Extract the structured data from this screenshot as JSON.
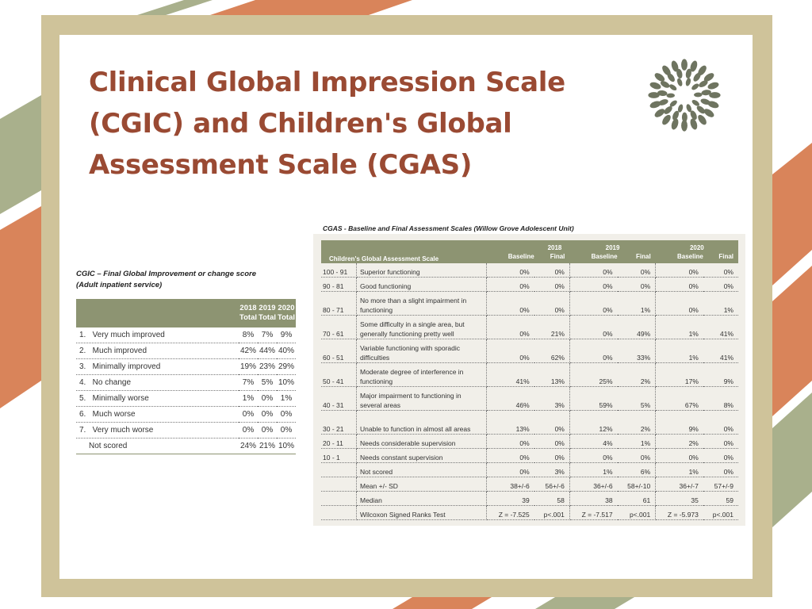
{
  "page": {
    "title": "Clinical Global Impression Scale (CGIC) and Children's Global Assessment Scale (CGAS)",
    "colors": {
      "title": "#9a4a33",
      "frame": "#cfc39a",
      "header": "#8d9472",
      "logo": "#6e7460",
      "stripe_orange": "#d9845a",
      "stripe_green": "#a9b08c"
    },
    "logo_icon": "leaf-wreath-logo-icon"
  },
  "cgic": {
    "caption_line1": "CGIC – Final Global Improvement or change score",
    "caption_line2": "(Adult inpatient service)",
    "headers": [
      {
        "year": "2018",
        "sub": "Total"
      },
      {
        "year": "2019",
        "sub": "Total"
      },
      {
        "year": "2020",
        "sub": "Total"
      }
    ],
    "rows": [
      {
        "label": "1.   Very much improved",
        "values": [
          "8%",
          "7%",
          "9%"
        ]
      },
      {
        "label": "2.   Much improved",
        "values": [
          "42%",
          "44%",
          "40%"
        ]
      },
      {
        "label": "3.   Minimally improved",
        "values": [
          "19%",
          "23%",
          "29%"
        ]
      },
      {
        "label": "4.   No change",
        "values": [
          "7%",
          "5%",
          "10%"
        ]
      },
      {
        "label": "5.   Minimally worse",
        "values": [
          "1%",
          "0%",
          "1%"
        ]
      },
      {
        "label": "6.   Much worse",
        "values": [
          "0%",
          "0%",
          "0%"
        ]
      },
      {
        "label": "7.   Very much worse",
        "values": [
          "0%",
          "0%",
          "0%"
        ]
      },
      {
        "label": "Not scored",
        "values": [
          "24%",
          "21%",
          "10%"
        ]
      }
    ]
  },
  "cgas": {
    "caption": "CGAS - Baseline and Final Assessment Scales (Willow Grove Adolescent Unit)",
    "scale_header": "Children's Global Assessment Scale",
    "years": [
      "2018",
      "2019",
      "2020"
    ],
    "sub_headers": [
      "Baseline",
      "Final"
    ],
    "rows": [
      {
        "range": "100 - 91",
        "desc": "Superior functioning",
        "values": [
          "0%",
          "0%",
          "0%",
          "0%",
          "0%",
          "0%"
        ]
      },
      {
        "range": "90 - 81",
        "desc": "Good functioning",
        "values": [
          "0%",
          "0%",
          "0%",
          "0%",
          "0%",
          "0%"
        ]
      },
      {
        "range": "80 - 71",
        "desc": "No more than a slight impairment in functioning",
        "values": [
          "0%",
          "0%",
          "0%",
          "1%",
          "0%",
          "1%"
        ]
      },
      {
        "range": "70 - 61",
        "desc": "Some difficulty in a single area, but generally functioning pretty well",
        "values": [
          "0%",
          "21%",
          "0%",
          "49%",
          "1%",
          "41%"
        ]
      },
      {
        "range": "60 - 51",
        "desc": "Variable functioning with sporadic difficulties",
        "values": [
          "0%",
          "62%",
          "0%",
          "33%",
          "1%",
          "41%"
        ]
      },
      {
        "range": "50 - 41",
        "desc": "Moderate degree of interference in functioning",
        "values": [
          "41%",
          "13%",
          "25%",
          "2%",
          "17%",
          "9%"
        ]
      },
      {
        "range": "40 - 31",
        "desc": "Major impairment to functioning in several areas",
        "values": [
          "46%",
          "3%",
          "59%",
          "5%",
          "67%",
          "8%"
        ]
      },
      {
        "range": "30 - 21",
        "desc": "Unable to function in almost all areas",
        "values": [
          "13%",
          "0%",
          "12%",
          "2%",
          "9%",
          "0%"
        ]
      },
      {
        "range": "20 - 11",
        "desc": "Needs considerable supervision",
        "values": [
          "0%",
          "0%",
          "4%",
          "1%",
          "2%",
          "0%"
        ]
      },
      {
        "range": "10 - 1",
        "desc": "Needs constant supervision",
        "values": [
          "0%",
          "0%",
          "0%",
          "0%",
          "0%",
          "0%"
        ]
      },
      {
        "range": "",
        "desc": "Not scored",
        "values": [
          "0%",
          "3%",
          "1%",
          "6%",
          "1%",
          "0%"
        ]
      },
      {
        "range": "",
        "desc": "Mean +/- SD",
        "values": [
          "38+/-6",
          "56+/-6",
          "36+/-6",
          "58+/-10",
          "36+/-7",
          "57+/-9"
        ]
      },
      {
        "range": "",
        "desc": "Median",
        "values": [
          "39",
          "58",
          "38",
          "61",
          "35",
          "59"
        ]
      },
      {
        "range": "",
        "desc": "Wilcoxon Signed Ranks Test",
        "values": [
          "Z = -7.525",
          "p<.001",
          "Z = -7.517",
          "p<.001",
          "Z = -5.973",
          "p<.001"
        ]
      }
    ]
  }
}
